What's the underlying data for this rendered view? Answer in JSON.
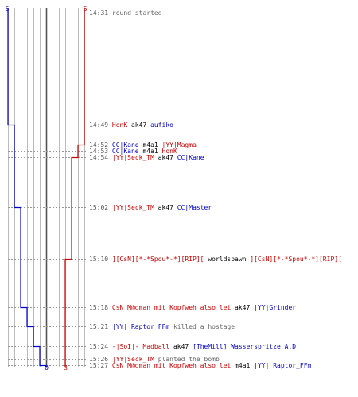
{
  "colors": {
    "blue": "#0000cc",
    "red": "#cc0000",
    "grey": "#666666",
    "black": "#000000",
    "grid": "#bbbbbb",
    "guide": "#999999",
    "center": "#555555"
  },
  "chart_data": {
    "type": "line",
    "title": "",
    "xlabel": "",
    "ylabel": "",
    "x_axis": {
      "range": [
        -6,
        6
      ],
      "top_labels": {
        "left": "6",
        "right": "6"
      },
      "bottom_labels": {
        "center": "0",
        "red": "3"
      },
      "bottom_label_values": {
        "center": 0,
        "red": 3
      }
    },
    "series": [
      {
        "color": "blue",
        "steps": [
          {
            "time": "14:31",
            "value": 6
          },
          {
            "time": "14:49",
            "value": 5
          },
          {
            "time": "15:02",
            "value": 4
          },
          {
            "time": "15:18",
            "value": 3
          },
          {
            "time": "15:21",
            "value": 2
          },
          {
            "time": "15:24",
            "value": 1
          },
          {
            "time": "15:27",
            "value": 0
          }
        ]
      },
      {
        "color": "red",
        "steps": [
          {
            "time": "14:31",
            "value": 6
          },
          {
            "time": "14:52",
            "value": 5
          },
          {
            "time": "14:54",
            "value": 4
          },
          {
            "time": "15:10",
            "value": 3
          }
        ]
      }
    ],
    "events": [
      {
        "time": "14:31",
        "parts": [
          {
            "text": "round started",
            "color": "grey"
          }
        ]
      },
      {
        "time": "14:49",
        "parts": [
          {
            "text": "HonK",
            "color": "red"
          },
          {
            "text": " ak47 ",
            "color": "black"
          },
          {
            "text": "aufiko",
            "color": "blue"
          }
        ]
      },
      {
        "time": "14:52",
        "parts": [
          {
            "text": "CC|Kane",
            "color": "blue"
          },
          {
            "text": " m4a1 ",
            "color": "black"
          },
          {
            "text": "|YY|Magma",
            "color": "red"
          }
        ]
      },
      {
        "time": "14:53",
        "parts": [
          {
            "text": "CC|Kane",
            "color": "blue"
          },
          {
            "text": " m4a1 ",
            "color": "black"
          },
          {
            "text": "HonK",
            "color": "red"
          }
        ]
      },
      {
        "time": "14:54",
        "parts": [
          {
            "text": "|YY|Seck_TM",
            "color": "red"
          },
          {
            "text": " ak47 ",
            "color": "black"
          },
          {
            "text": "CC|Kane",
            "color": "blue"
          }
        ]
      },
      {
        "time": "15:02",
        "parts": [
          {
            "text": "|YY|Seck_TM",
            "color": "red"
          },
          {
            "text": " ak47 ",
            "color": "black"
          },
          {
            "text": "CC|Master",
            "color": "blue"
          }
        ]
      },
      {
        "time": "15:10",
        "parts": [
          {
            "text": "][CsN][*-*Spou*-*][RIP][",
            "color": "red"
          },
          {
            "text": " worldspawn ",
            "color": "black"
          },
          {
            "text": "][CsN][*-*Spou*-*][RIP][",
            "color": "red"
          }
        ]
      },
      {
        "time": "15:18",
        "parts": [
          {
            "text": "CsN M@dman mit Kopfweh also lei",
            "color": "red"
          },
          {
            "text": " ak47 ",
            "color": "black"
          },
          {
            "text": "|YY|Grinder",
            "color": "blue"
          }
        ]
      },
      {
        "time": "15:21",
        "parts": [
          {
            "text": "|YY| Raptor_FFm",
            "color": "blue"
          },
          {
            "text": " killed a hostage",
            "color": "grey"
          }
        ]
      },
      {
        "time": "15:24",
        "parts": [
          {
            "text": "-|SoI|- Madball",
            "color": "red"
          },
          {
            "text": " ak47 ",
            "color": "black"
          },
          {
            "text": "[TheMill] Wasserspritze A.D.",
            "color": "blue"
          }
        ]
      },
      {
        "time": "15:26",
        "parts": [
          {
            "text": "|YY|Seck_TM",
            "color": "red"
          },
          {
            "text": " planted the bomb",
            "color": "grey"
          }
        ]
      },
      {
        "time": "15:27",
        "parts": [
          {
            "text": "CsN M@dman mit Kopfweh also lei",
            "color": "red"
          },
          {
            "text": " m4a1 ",
            "color": "black"
          },
          {
            "text": "|YY| Raptor_FFm",
            "color": "blue"
          }
        ]
      }
    ]
  }
}
